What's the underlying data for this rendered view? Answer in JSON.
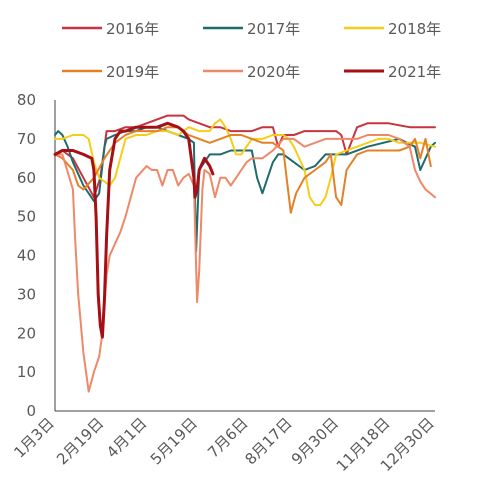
{
  "chart_data": {
    "type": "line",
    "title": "",
    "xlabel": "",
    "ylabel": "",
    "ylim": [
      0,
      80
    ],
    "yticks": [
      0,
      10,
      20,
      30,
      40,
      50,
      60,
      70,
      80
    ],
    "x_tick_labels": [
      "1月3日",
      "2月19日",
      "4月1日",
      "5月19日",
      "7月6日",
      "8月17日",
      "9月30日",
      "11月18日",
      "12月30日"
    ],
    "x_tick_days": [
      3,
      50,
      91,
      139,
      187,
      229,
      273,
      322,
      364
    ],
    "grid": false,
    "legend_position": "top",
    "series": [
      {
        "name": "2016年",
        "color": "#c8333f",
        "width": 2,
        "x": [
          3,
          10,
          20,
          30,
          40,
          46,
          52,
          60,
          70,
          80,
          90,
          100,
          110,
          125,
          130,
          140,
          150,
          160,
          170,
          180,
          190,
          200,
          210,
          215,
          220,
          230,
          240,
          260,
          270,
          275,
          280,
          290,
          300,
          320,
          340,
          364
        ],
        "y": [
          66,
          67,
          65,
          60,
          55,
          60,
          72,
          72,
          73,
          73,
          74,
          75,
          76,
          76,
          75,
          74,
          73,
          73,
          72,
          72,
          72,
          73,
          73,
          68,
          71,
          71,
          72,
          72,
          72,
          71,
          66,
          73,
          74,
          74,
          73,
          73
        ]
      },
      {
        "name": "2017年",
        "color": "#1f6b6e",
        "width": 2,
        "x": [
          3,
          6,
          10,
          15,
          20,
          30,
          40,
          45,
          50,
          52,
          60,
          70,
          80,
          90,
          100,
          110,
          120,
          130,
          135,
          137,
          140,
          150,
          160,
          170,
          180,
          190,
          195,
          200,
          205,
          210,
          215,
          220,
          230,
          240,
          250,
          260,
          270,
          280,
          300,
          330,
          345,
          350,
          360,
          364
        ],
        "y": [
          71,
          72,
          71,
          68,
          64,
          58,
          54,
          56,
          68,
          70,
          71,
          72,
          72,
          73,
          73,
          72,
          71,
          70,
          69,
          41,
          62,
          66,
          66,
          67,
          67,
          67,
          60,
          56,
          60,
          64,
          66,
          66,
          64,
          62,
          63,
          66,
          66,
          66,
          68,
          70,
          68,
          62,
          68,
          69
        ]
      },
      {
        "name": "2018年",
        "color": "#f5cd1a",
        "width": 2,
        "x": [
          3,
          10,
          20,
          30,
          35,
          40,
          45,
          50,
          55,
          60,
          65,
          70,
          80,
          90,
          100,
          110,
          120,
          130,
          140,
          150,
          155,
          160,
          165,
          170,
          175,
          180,
          190,
          200,
          210,
          220,
          225,
          230,
          240,
          245,
          250,
          255,
          260,
          265,
          270,
          280,
          290,
          300,
          310,
          320,
          330,
          340,
          350,
          364
        ],
        "y": [
          70,
          70,
          71,
          71,
          70,
          64,
          60,
          59,
          58,
          60,
          65,
          70,
          71,
          71,
          72,
          72,
          71,
          73,
          72,
          72,
          74,
          75,
          73,
          70,
          66,
          66,
          70,
          70,
          71,
          71,
          70,
          68,
          62,
          55,
          53,
          53,
          55,
          60,
          66,
          67,
          68,
          69,
          70,
          70,
          69,
          69,
          69,
          68
        ]
      },
      {
        "name": "2019年",
        "color": "#e48128",
        "width": 2,
        "x": [
          3,
          10,
          20,
          25,
          30,
          40,
          50,
          55,
          60,
          70,
          80,
          90,
          100,
          110,
          120,
          130,
          140,
          150,
          160,
          170,
          180,
          190,
          200,
          210,
          220,
          223,
          227,
          232,
          240,
          250,
          260,
          265,
          270,
          275,
          280,
          290,
          300,
          310,
          320,
          330,
          340,
          345,
          350,
          355,
          360
        ],
        "y": [
          66,
          65,
          62,
          58,
          57,
          60,
          65,
          67,
          69,
          71,
          72,
          72,
          72,
          73,
          73,
          71,
          70,
          69,
          70,
          71,
          71,
          70,
          69,
          69,
          67,
          60,
          51,
          56,
          60,
          62,
          64,
          66,
          55,
          53,
          62,
          66,
          67,
          67,
          67,
          67,
          68,
          70,
          65,
          70,
          63
        ]
      },
      {
        "name": "2020年",
        "color": "#ef8868",
        "width": 2,
        "x": [
          3,
          10,
          20,
          22,
          25,
          30,
          35,
          40,
          45,
          48,
          52,
          55,
          60,
          65,
          70,
          80,
          90,
          95,
          100,
          105,
          110,
          115,
          120,
          125,
          130,
          135,
          138,
          140,
          143,
          145,
          150,
          155,
          160,
          165,
          170,
          175,
          180,
          185,
          190,
          200,
          205,
          210,
          220,
          230,
          240,
          250,
          260,
          270,
          280,
          290,
          300,
          310,
          320,
          330,
          340,
          345,
          350,
          355,
          364
        ],
        "y": [
          66,
          66,
          57,
          45,
          30,
          15,
          5,
          10,
          14,
          20,
          35,
          40,
          43,
          46,
          50,
          60,
          63,
          62,
          62,
          58,
          62,
          62,
          58,
          60,
          61,
          58,
          28,
          36,
          57,
          62,
          61,
          55,
          60,
          60,
          58,
          60,
          62,
          64,
          65,
          65,
          66,
          67,
          70,
          70,
          68,
          69,
          70,
          70,
          70,
          70,
          71,
          71,
          71,
          70,
          68,
          62,
          59,
          57,
          55
        ]
      },
      {
        "name": "2021年",
        "color": "#a50f15",
        "width": 3,
        "x": [
          3,
          10,
          20,
          30,
          38,
          40,
          42,
          44,
          46,
          48,
          50,
          52,
          55,
          60,
          65,
          70,
          80,
          90,
          100,
          110,
          120,
          125,
          130,
          135,
          136,
          138,
          140,
          145,
          150,
          153
        ],
        "y": [
          66,
          67,
          67,
          66,
          65,
          62,
          50,
          30,
          22,
          19,
          29,
          45,
          62,
          70,
          72,
          72,
          73,
          73,
          73,
          74,
          73,
          72,
          70,
          60,
          55,
          57,
          62,
          65,
          63,
          61
        ]
      }
    ]
  }
}
